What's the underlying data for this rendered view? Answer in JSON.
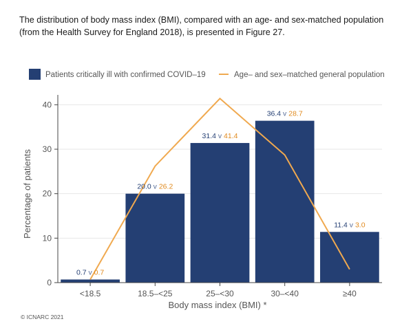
{
  "intro_text": "The distribution of body mass index (BMI), compared with an age- and sex-matched population (from the Health Survey for England 2018), is presented in Figure 27.",
  "credit": "© ICNARC 2021",
  "colors": {
    "bar": "#243f73",
    "line": "#f0a94f",
    "patients_label": "#243f73",
    "population_label": "#e08a1e",
    "grid": "#e6e6e6",
    "axis": "#444444"
  },
  "chart_data": {
    "type": "bar",
    "categories": [
      "<18.5",
      "18.5–<25",
      "25–<30",
      "30–<40",
      "≥40"
    ],
    "series": [
      {
        "name": "Patients critically ill with confirmed COVID–19",
        "type": "bar",
        "values": [
          0.7,
          20.0,
          31.4,
          36.4,
          11.4
        ],
        "labels": [
          "0.7",
          "20.0",
          "31.4",
          "36.4",
          "11.4"
        ]
      },
      {
        "name": "Age– and sex–matched general population",
        "type": "line",
        "values": [
          0.7,
          26.2,
          41.4,
          28.7,
          3.0
        ],
        "labels": [
          "0.7",
          "26.2",
          "41.4",
          "28.7",
          "3.0"
        ]
      }
    ],
    "separator": "v",
    "xlabel": "Body mass index (BMI) *",
    "ylabel": "Percentage of patients",
    "ylim": [
      0,
      45
    ],
    "yticks": [
      0,
      10,
      20,
      30,
      40
    ],
    "grid": true,
    "legend": "top"
  }
}
